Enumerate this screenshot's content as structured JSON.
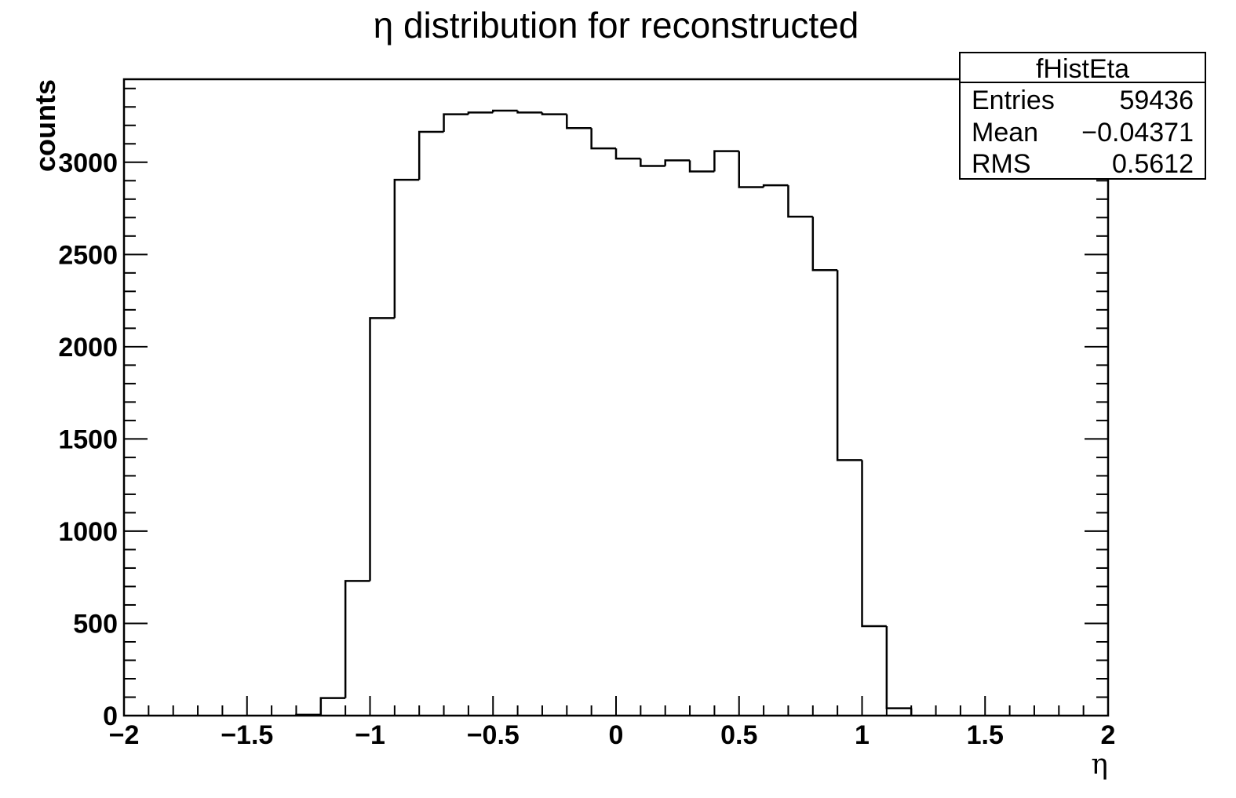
{
  "chart_data": {
    "type": "histogram",
    "title": "η distribution for reconstructed",
    "xlabel": "η",
    "ylabel": "counts",
    "xlim": [
      -2,
      2
    ],
    "ylim": [
      0,
      3450
    ],
    "x_ticks": [
      -2,
      -1.5,
      -1,
      -0.5,
      0,
      0.5,
      1,
      1.5,
      2
    ],
    "x_tick_labels": [
      "−2",
      "−1.5",
      "−1",
      "−0.5",
      "0",
      "0.5",
      "1",
      "1.5",
      "2"
    ],
    "y_ticks": [
      0,
      500,
      1000,
      1500,
      2000,
      2500,
      3000
    ],
    "y_tick_labels": [
      "0",
      "500",
      "1000",
      "1500",
      "2000",
      "2500",
      "3000"
    ],
    "bin_width": 0.1,
    "bin_edges_start": -1.3,
    "values": [
      5,
      95,
      730,
      2155,
      2905,
      3165,
      3260,
      3270,
      3280,
      3270,
      3260,
      3185,
      3075,
      3020,
      2980,
      3010,
      2950,
      3060,
      2865,
      2875,
      2705,
      2415,
      1385,
      485,
      40
    ],
    "grid": false,
    "legend": "none"
  },
  "stats_box": {
    "name": "fHistEta",
    "rows": [
      {
        "label": "Entries",
        "value": "59436"
      },
      {
        "label": "Mean",
        "value": "−0.04371"
      },
      {
        "label": "RMS",
        "value": "0.5612"
      }
    ]
  }
}
